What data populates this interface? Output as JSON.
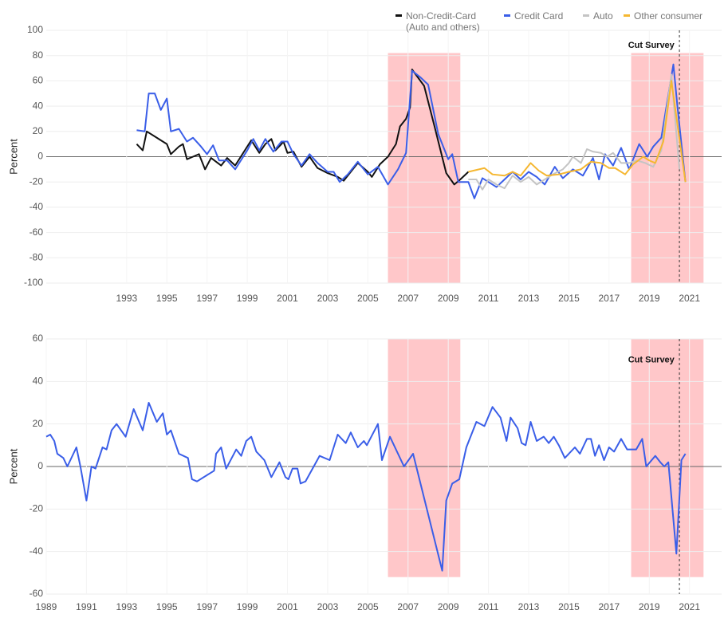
{
  "chart_data": [
    {
      "type": "line",
      "ylabel": "Percent",
      "ylim": [
        -100,
        100
      ],
      "yticks": [
        -100,
        -80,
        -60,
        -40,
        -20,
        0,
        20,
        40,
        60,
        80,
        100
      ],
      "xlim": [
        1989,
        2022.6
      ],
      "xticks": [
        1993,
        1995,
        1997,
        1999,
        2001,
        2003,
        2005,
        2007,
        2009,
        2011,
        2013,
        2015,
        2017,
        2019,
        2021
      ],
      "grid": true,
      "legend": "top",
      "shaded_regions": [
        {
          "x": [
            2006,
            2009.6
          ],
          "y": [
            -100,
            82
          ]
        },
        {
          "x": [
            2018.1,
            2021.7
          ],
          "y": [
            -100,
            82
          ]
        }
      ],
      "vline": 2020.5,
      "annotation": {
        "text": "Cut Survey",
        "x": 2019.1,
        "y": 88
      },
      "series": [
        {
          "name": "Non-Credit-Card\n(Auto and others)",
          "color": "#111111",
          "x": [
            1993.5,
            1993.8,
            1994.0,
            1994.4,
            1994.8,
            1995.0,
            1995.2,
            1995.6,
            1995.8,
            1996.0,
            1996.3,
            1996.6,
            1996.9,
            1997.2,
            1997.7,
            1998.0,
            1998.4,
            1999.2,
            1999.6,
            1999.9,
            2000.2,
            2000.4,
            2000.7,
            2000.8,
            2001.0,
            2001.3,
            2001.7,
            2002.1,
            2002.5,
            2003.0,
            2003.5,
            2003.8,
            2004.5,
            2005.0,
            2005.2,
            2005.6,
            2006.0,
            2006.4,
            2006.6,
            2006.9,
            2007.1,
            2007.2,
            2007.8,
            2008.3,
            2008.9,
            2009.3,
            2009.6,
            2010.0
          ],
          "values": [
            10,
            5,
            20,
            16,
            12,
            10,
            2,
            8,
            10,
            -2,
            0,
            2,
            -10,
            -1,
            -7,
            -1,
            -7,
            13,
            3,
            10,
            14,
            5,
            10,
            12,
            3,
            4,
            -8,
            0,
            -9,
            -13,
            -16,
            -19,
            -5,
            -12,
            -16,
            -6,
            0,
            10,
            24,
            30,
            39,
            69,
            56,
            25,
            -13,
            -22,
            -18,
            -12
          ]
        },
        {
          "name": "Credit Card",
          "color": "#3a5ee8",
          "x": [
            1993.5,
            1993.9,
            1994.1,
            1994.4,
            1994.7,
            1995.0,
            1995.2,
            1995.6,
            1996.0,
            1996.3,
            1996.7,
            1997.0,
            1997.3,
            1997.6,
            1998.0,
            1998.4,
            1999.0,
            1999.3,
            1999.6,
            1999.9,
            2000.3,
            2000.7,
            2001.0,
            2001.3,
            2001.7,
            2002.1,
            2002.5,
            2003.0,
            2003.3,
            2003.6,
            2004.0,
            2004.5,
            2005.0,
            2005.5,
            2006.0,
            2006.5,
            2006.9,
            2007.2,
            2007.6,
            2008.0,
            2008.5,
            2009.0,
            2009.2,
            2009.5,
            2010.0,
            2010.3,
            2010.7,
            2011.0,
            2011.4,
            2011.8,
            2012.2,
            2012.6,
            2013.0,
            2013.4,
            2013.8,
            2014.3,
            2014.7,
            2015.2,
            2015.7,
            2016.2,
            2016.5,
            2016.8,
            2017.2,
            2017.6,
            2018.0,
            2018.5,
            2018.9,
            2019.2,
            2019.6,
            2020.2,
            2020.4,
            2020.8
          ],
          "values": [
            21,
            20,
            50,
            50,
            37,
            46,
            20,
            22,
            12,
            15,
            8,
            2,
            9,
            -3,
            -3,
            -10,
            5,
            14,
            5,
            14,
            4,
            12,
            12,
            2,
            -7,
            2,
            -5,
            -12,
            -12,
            -20,
            -14,
            -4,
            -14,
            -8,
            -22,
            -10,
            3,
            68,
            63,
            57,
            18,
            -2,
            2,
            -20,
            -20,
            -33,
            -17,
            -20,
            -24,
            -18,
            -12,
            -18,
            -12,
            -16,
            -22,
            -8,
            -17,
            -10,
            -15,
            -1,
            -18,
            2,
            -7,
            7,
            -10,
            10,
            0,
            8,
            15,
            73,
            40,
            -20
          ]
        },
        {
          "name": "Auto",
          "color": "#c4c4c4",
          "x": [
            2010.0,
            2010.4,
            2010.7,
            2011.0,
            2011.4,
            2011.8,
            2012.2,
            2012.6,
            2013.0,
            2013.4,
            2013.8,
            2014.2,
            2014.7,
            2015.0,
            2015.2,
            2015.6,
            2015.9,
            2016.2,
            2016.6,
            2016.9,
            2017.2,
            2017.6,
            2018.0,
            2018.4,
            2018.8,
            2019.2,
            2019.6,
            2020.1,
            2020.5
          ],
          "values": [
            -18,
            -18,
            -26,
            -18,
            -22,
            -25,
            -15,
            -20,
            -16,
            -22,
            -18,
            -14,
            -10,
            -5,
            0,
            -5,
            6,
            4,
            3,
            0,
            3,
            -5,
            -5,
            -3,
            -5,
            -8,
            5,
            65,
            -10
          ]
        },
        {
          "name": "Other consumer",
          "color": "#f5b731",
          "x": [
            2010.0,
            2010.8,
            2011.2,
            2011.8,
            2012.2,
            2012.6,
            2013.1,
            2013.5,
            2013.9,
            2014.5,
            2015.0,
            2015.6,
            2016.1,
            2016.6,
            2017.0,
            2017.3,
            2017.8,
            2018.2,
            2018.7,
            2019.0,
            2019.3,
            2019.7,
            2020.1,
            2020.8
          ],
          "values": [
            -12,
            -9,
            -14,
            -15,
            -12,
            -15,
            -5,
            -11,
            -15,
            -14,
            -12,
            -10,
            -4,
            -5,
            -9,
            -9,
            -14,
            -6,
            0,
            -3,
            -5,
            12,
            60,
            -20
          ]
        }
      ]
    },
    {
      "type": "line",
      "ylabel": "Percent",
      "ylim": [
        -60,
        60
      ],
      "yticks": [
        -60,
        -40,
        -20,
        0,
        20,
        40,
        60
      ],
      "xlim": [
        1989,
        2022.6
      ],
      "xticks": [
        1989,
        1991,
        1993,
        1995,
        1997,
        1999,
        2001,
        2003,
        2005,
        2007,
        2009,
        2011,
        2013,
        2015,
        2017,
        2019,
        2021
      ],
      "grid": true,
      "shaded_regions": [
        {
          "x": [
            2006,
            2009.6
          ],
          "y": [
            -52,
            60
          ]
        },
        {
          "x": [
            2018.1,
            2021.7
          ],
          "y": [
            -52,
            60
          ]
        }
      ],
      "vline": 2020.5,
      "annotation": {
        "text": "Cut Survey",
        "x": 2019.1,
        "y": 50
      },
      "series": [
        {
          "color": "#3a5ee8",
          "x": [
            1989.0,
            1989.2,
            1989.4,
            1989.55,
            1989.85,
            1990.05,
            1990.5,
            1990.7,
            1991.0,
            1991.25,
            1991.45,
            1991.8,
            1992.0,
            1992.25,
            1992.5,
            1992.95,
            1993.35,
            1993.8,
            1994.1,
            1994.5,
            1994.8,
            1995.0,
            1995.2,
            1995.6,
            1996.05,
            1996.25,
            1996.5,
            1997.35,
            1997.45,
            1997.7,
            1997.95,
            1998.45,
            1998.7,
            1998.95,
            1999.2,
            1999.45,
            1999.85,
            2000.2,
            2000.6,
            2000.9,
            2001.05,
            2001.25,
            2001.5,
            2001.65,
            2001.9,
            2002.6,
            2003.1,
            2003.5,
            2003.9,
            2004.15,
            2004.5,
            2004.8,
            2004.95,
            2005.5,
            2005.7,
            2006.1,
            2006.8,
            2007.25,
            2008.7,
            2008.9,
            2009.2,
            2009.55,
            2009.9,
            2010.4,
            2010.8,
            2011.2,
            2011.6,
            2011.9,
            2012.1,
            2012.45,
            2012.65,
            2012.85,
            2013.1,
            2013.4,
            2013.75,
            2014.0,
            2014.25,
            2014.5,
            2014.8,
            2015.3,
            2015.55,
            2015.9,
            2016.1,
            2016.3,
            2016.5,
            2016.75,
            2017.0,
            2017.25,
            2017.6,
            2017.9,
            2018.35,
            2018.65,
            2018.85,
            2019.3,
            2019.55,
            2019.75,
            2019.95,
            2020.35,
            2020.6,
            2020.8
          ],
          "values": [
            14,
            15,
            12,
            6,
            4,
            0,
            9,
            0,
            -16,
            0,
            -1,
            9,
            8,
            17,
            20,
            14,
            27,
            17,
            30,
            21,
            25,
            15,
            17,
            6,
            4,
            -6,
            -7,
            -2,
            6,
            9,
            -1,
            8,
            5,
            12,
            14,
            7,
            3,
            -5,
            2,
            -5,
            -6,
            -1,
            -1,
            -8,
            -7,
            5,
            3,
            15,
            11,
            16,
            9,
            12,
            10,
            20,
            3,
            14,
            0,
            6,
            -49,
            -16,
            -8,
            -6,
            9,
            21,
            19,
            28,
            23,
            12,
            23,
            18,
            11,
            10,
            21,
            12,
            14,
            11,
            14,
            10,
            4,
            9,
            6,
            13,
            13,
            5,
            10,
            3,
            9,
            7,
            13,
            8,
            8,
            13,
            0,
            5,
            2,
            0,
            2,
            -41,
            3,
            6
          ]
        }
      ]
    }
  ]
}
